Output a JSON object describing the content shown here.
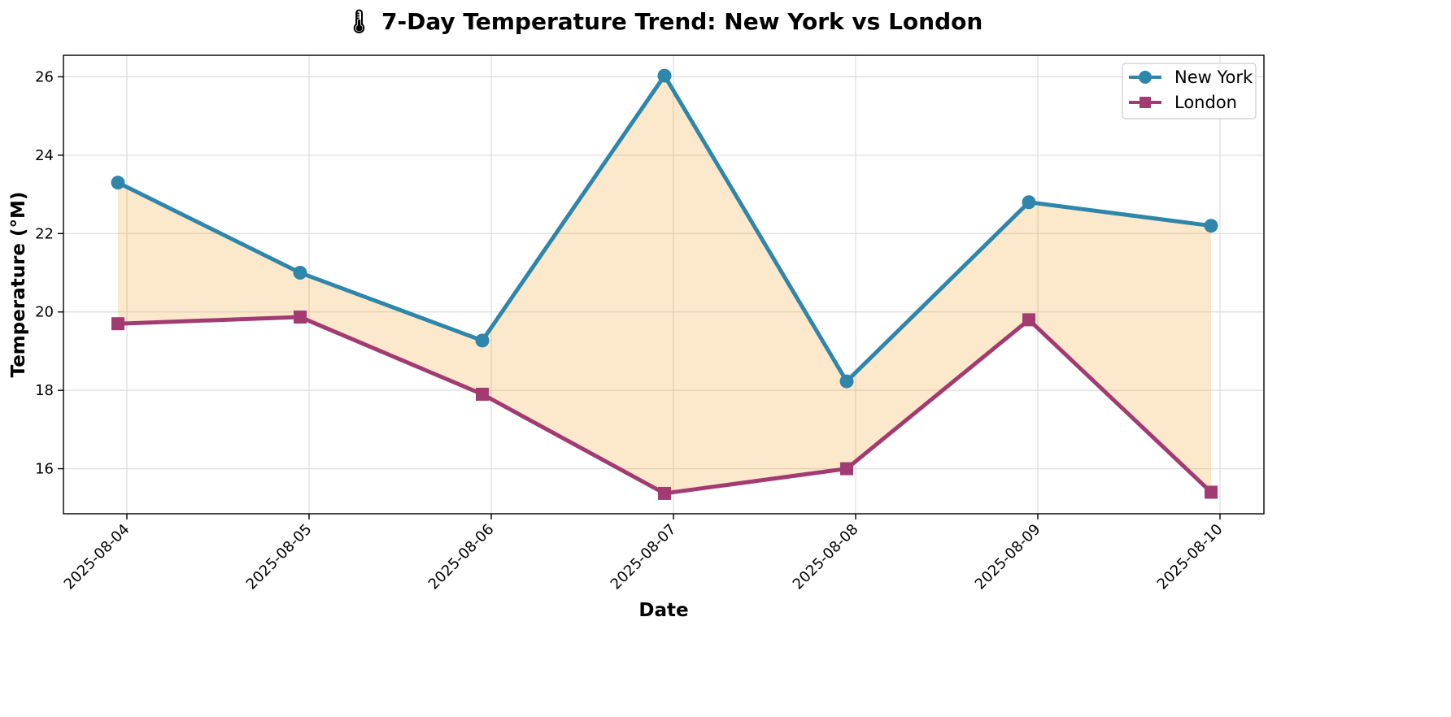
{
  "chart_data": {
    "type": "line",
    "title": "🌡 7-Day Temperature Trend: New York vs London",
    "xlabel": "Date",
    "ylabel": "Temperature (°M)",
    "x": [
      "2025-08-04",
      "2025-08-05",
      "2025-08-06",
      "2025-08-07",
      "2025-08-08",
      "2025-08-09",
      "2025-08-10"
    ],
    "x_tick_labels": [
      "2025-08-04",
      "2025-08-05",
      "2025-08-06",
      "2025-08-07",
      "2025-08-08",
      "2025-08-09",
      "2025-08-10"
    ],
    "y_ticks": [
      16,
      18,
      20,
      22,
      24,
      26
    ],
    "ylim": [
      14.85,
      26.55
    ],
    "grid": true,
    "legend_position": "top-right",
    "series": [
      {
        "name": "New York",
        "values": [
          23.3,
          21.0,
          19.27,
          26.03,
          18.23,
          22.8,
          22.2
        ],
        "color": "#2e86ab",
        "marker": "circle"
      },
      {
        "name": "London",
        "values": [
          19.7,
          19.87,
          17.9,
          15.37,
          16.0,
          19.8,
          15.4
        ],
        "color": "#a23b72",
        "marker": "square"
      }
    ],
    "fill_between": {
      "series": [
        "New York",
        "London"
      ],
      "color": "#f18f01"
    }
  }
}
